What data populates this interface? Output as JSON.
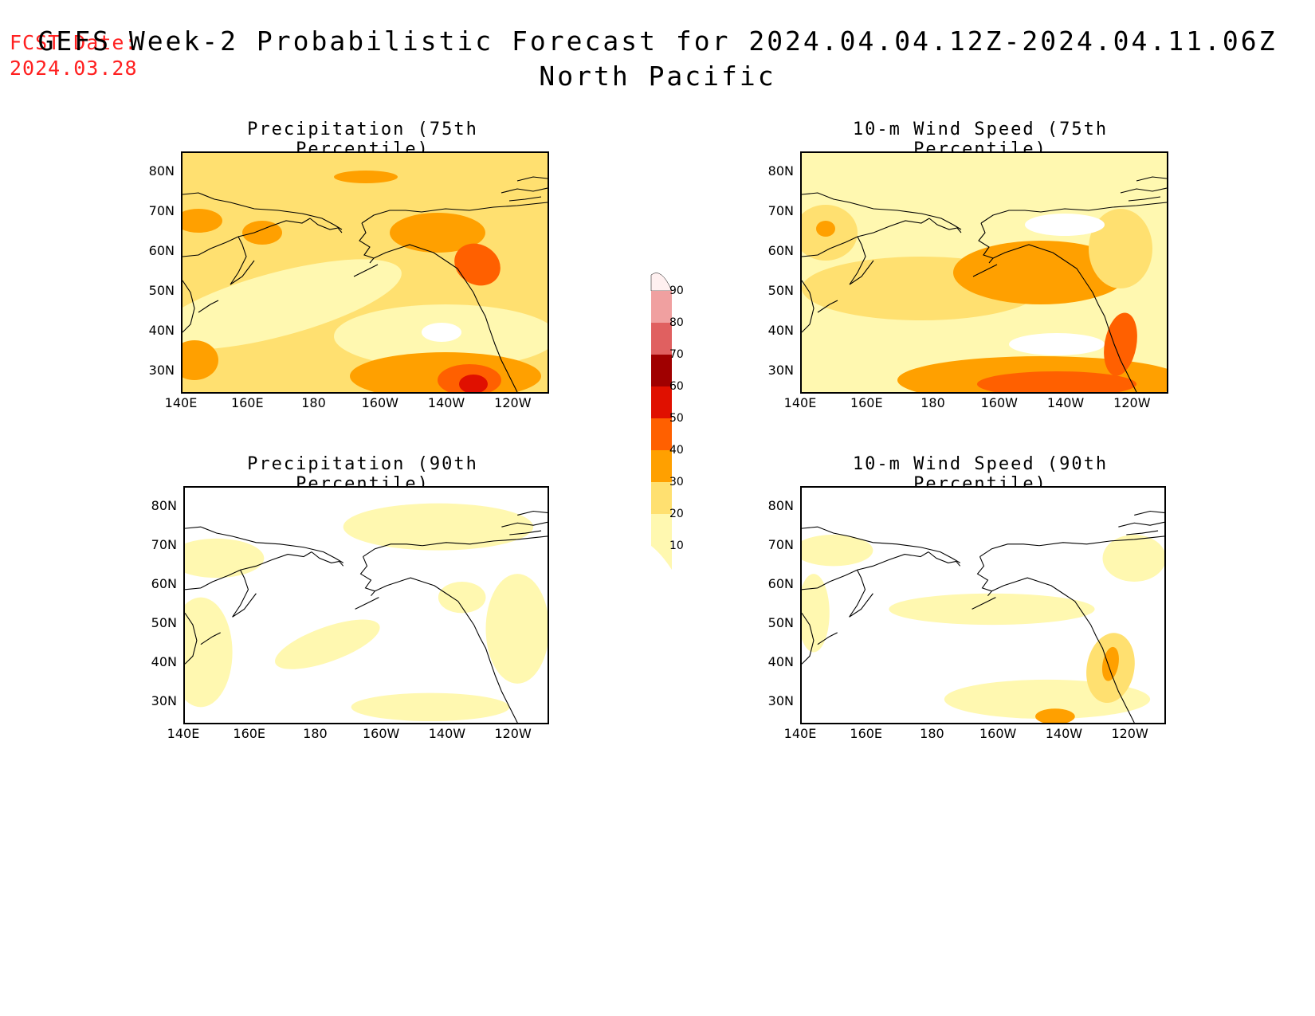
{
  "fcst": {
    "line1": "FCST Date:",
    "line2": "2024.03.28"
  },
  "title": {
    "line1": "GEFS Week-2 Probabilistic Forecast for 2024.04.04.12Z-2024.04.11.06Z",
    "line2": "North Pacific"
  },
  "panels": [
    {
      "title": "Precipitation (75th Percentile)",
      "level": "high-precip"
    },
    {
      "title": "10-m Wind Speed (75th Percentile)",
      "level": "high-wind"
    },
    {
      "title": "Precipitation (90th Percentile)",
      "level": "low-precip"
    },
    {
      "title": "10-m Wind Speed (90th Percentile)",
      "level": "low-wind"
    }
  ],
  "axes": {
    "lat_labels": [
      "80N",
      "70N",
      "60N",
      "50N",
      "40N",
      "30N"
    ],
    "lon_labels": [
      "140E",
      "160E",
      "180",
      "160W",
      "140W",
      "120W"
    ]
  },
  "colorbar": {
    "labels": [
      "90",
      "80",
      "70",
      "60",
      "50",
      "40",
      "30",
      "20",
      "10"
    ],
    "colors": [
      "#fff0f0",
      "#f0a0a0",
      "#e06060",
      "#a00000",
      "#e01000",
      "#ff6000",
      "#ffa000",
      "#ffe070",
      "#fff8b0"
    ]
  }
}
